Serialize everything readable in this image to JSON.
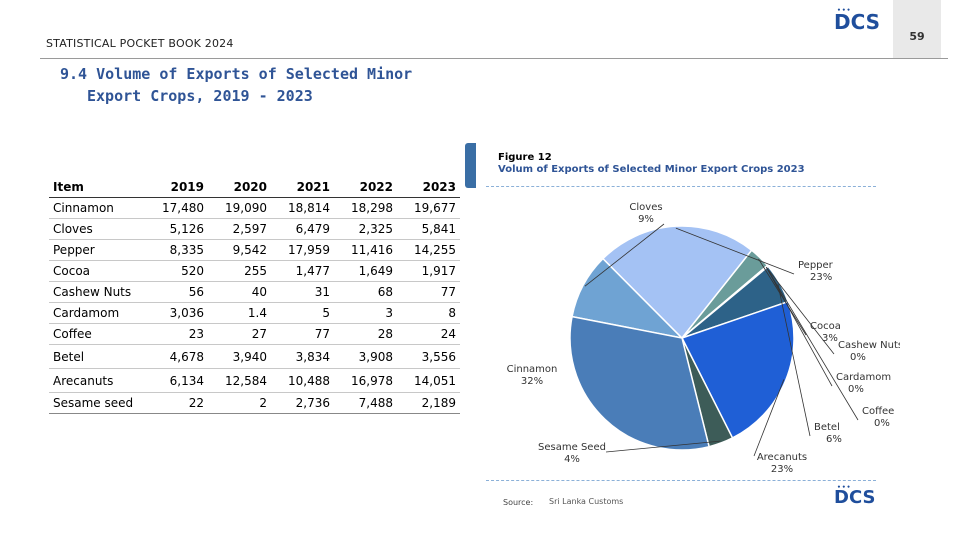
{
  "header": {
    "book_title": "STATISTICAL POCKET BOOK 2024",
    "page_number": "59",
    "logo_text": "DCS"
  },
  "section": {
    "title_line1": "9.4 Volume of Exports of Selected Minor",
    "title_line2": "Export Crops, 2019 - 2023"
  },
  "table": {
    "columns": [
      "Item",
      "2019",
      "2020",
      "2021",
      "2022",
      "2023"
    ],
    "rows": [
      [
        "Cinnamon",
        "17,480",
        "19,090",
        "18,814",
        "18,298",
        "19,677"
      ],
      [
        "Cloves",
        "5,126",
        "2,597",
        "6,479",
        "2,325",
        "5,841"
      ],
      [
        "Pepper",
        "8,335",
        "9,542",
        "17,959",
        "11,416",
        "14,255"
      ],
      [
        "Cocoa",
        "520",
        "255",
        "1,477",
        "1,649",
        "1,917"
      ],
      [
        "Cashew Nuts",
        "56",
        "40",
        "31",
        "68",
        "77"
      ],
      [
        "Cardamom",
        "3,036",
        "1.4",
        "5",
        "3",
        "8"
      ],
      [
        "Coffee",
        "23",
        "27",
        "77",
        "28",
        "24"
      ],
      [
        "Betel",
        "4,678",
        "3,940",
        "3,834",
        "3,908",
        "3,556"
      ],
      [
        "Arecanuts",
        "6,134",
        "12,584",
        "10,488",
        "16,978",
        "14,051"
      ],
      [
        "Sesame seed",
        "22",
        "2",
        "2,736",
        "7,488",
        "2,189"
      ]
    ]
  },
  "figure": {
    "label": "Figure 12",
    "title": "Volum of Exports of Selected Minor Export Crops 2023",
    "source_label": "Source:",
    "source_value": "Sri Lanka Customs"
  },
  "chart_data": {
    "type": "pie",
    "title": "Volum of Exports of Selected Minor Export Crops 2023",
    "slices": [
      {
        "name": "Cloves",
        "label": "9%",
        "value": 5841,
        "color": "#6fa3d3"
      },
      {
        "name": "Pepper",
        "label": "23%",
        "value": 14255,
        "color": "#a4c2f4"
      },
      {
        "name": "Cocoa",
        "label": "3%",
        "value": 1917,
        "color": "#6a9c9a"
      },
      {
        "name": "Cashew Nuts",
        "label": "0%",
        "value": 77,
        "color": "#4a6f8a"
      },
      {
        "name": "Cardamom",
        "label": "0%",
        "value": 8,
        "color": "#7a8fa8"
      },
      {
        "name": "Coffee",
        "label": "0%",
        "value": 24,
        "color": "#99a8bb"
      },
      {
        "name": "Betel",
        "label": "6%",
        "value": 3556,
        "color": "#2d6288"
      },
      {
        "name": "Arecanuts",
        "label": "23%",
        "value": 14051,
        "color": "#1f5fd6"
      },
      {
        "name": "Sesame Seed",
        "label": "4%",
        "value": 2189,
        "color": "#3d5c58"
      },
      {
        "name": "Cinnamon",
        "label": "32%",
        "value": 19677,
        "color": "#4a7db8"
      }
    ]
  }
}
